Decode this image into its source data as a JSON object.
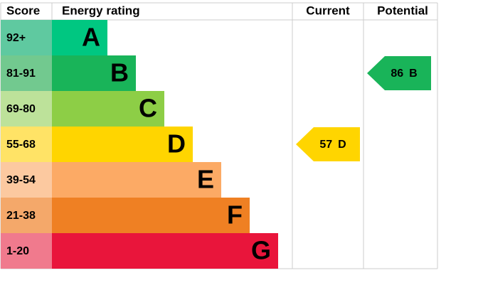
{
  "header": {
    "score": "Score",
    "rating": "Energy rating",
    "current": "Current",
    "potential": "Potential"
  },
  "bands": [
    {
      "score": "92+",
      "letter": "A",
      "color": "#00c781",
      "score_color": "#5fc9a0"
    },
    {
      "score": "81-91",
      "letter": "B",
      "color": "#19b459",
      "score_color": "#72c98f"
    },
    {
      "score": "69-80",
      "letter": "C",
      "color": "#8dce46",
      "score_color": "#bde29a"
    },
    {
      "score": "55-68",
      "letter": "D",
      "color": "#ffd500",
      "score_color": "#ffe366"
    },
    {
      "score": "39-54",
      "letter": "E",
      "color": "#fcaa65",
      "score_color": "#fcc9a0"
    },
    {
      "score": "21-38",
      "letter": "F",
      "color": "#ef8023",
      "score_color": "#f4a86a"
    },
    {
      "score": "1-20",
      "letter": "G",
      "color": "#e9153b",
      "score_color": "#f07a8d"
    }
  ],
  "current": {
    "value": 57,
    "letter": "D"
  },
  "potential": {
    "value": 86,
    "letter": "B"
  }
}
